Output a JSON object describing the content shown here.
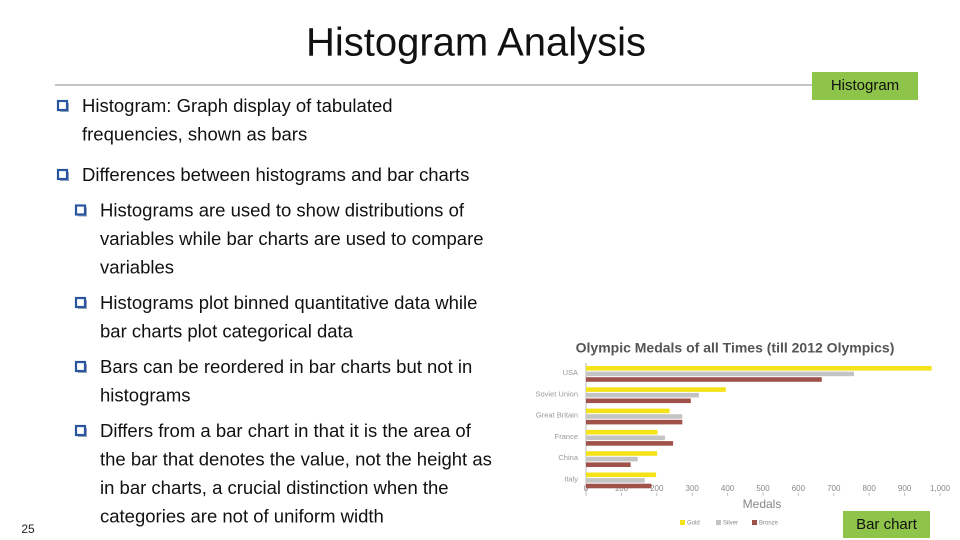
{
  "title": "Histogram Analysis",
  "tags": {
    "top": "Histogram",
    "bottom": "Bar chart"
  },
  "page_number": "25",
  "bullets": [
    {
      "lines": [
        "Histogram: Graph display of tabulated",
        "frequencies, shown as bars"
      ]
    },
    {
      "lines": [
        "Differences between histograms and bar charts"
      ],
      "sub": [
        {
          "lines": [
            "Histograms are used to show distributions of",
            "variables while bar charts are used to compare",
            "variables"
          ]
        },
        {
          "lines": [
            "Histograms plot binned quantitative data while",
            "bar charts plot categorical data"
          ]
        },
        {
          "lines": [
            "Bars can be reordered in bar charts but not in",
            "histograms"
          ]
        },
        {
          "lines": [
            "Differs from a bar chart in that it is the area of",
            "the bar that denotes the value, not the height as",
            "in bar charts, a crucial distinction when the",
            "categories are not of uniform width"
          ]
        }
      ]
    }
  ],
  "chart_data": {
    "type": "bar",
    "orientation": "horizontal",
    "title": "Olympic Medals of all Times (till 2012 Olympics)",
    "xlabel": "Medals",
    "categories": [
      "USA",
      "Soviet Union",
      "Great Britain",
      "France",
      "China",
      "Italy"
    ],
    "series": [
      {
        "name": "Gold",
        "color": "#f5e31a",
        "values": [
          976,
          395,
          236,
          202,
          201,
          198
        ]
      },
      {
        "name": "Silver",
        "color": "#c4c4c4",
        "values": [
          757,
          319,
          272,
          223,
          146,
          166
        ]
      },
      {
        "name": "Bronze",
        "color": "#a0524a",
        "values": [
          666,
          296,
          272,
          246,
          126,
          185
        ]
      }
    ],
    "xlim": [
      0,
      1000
    ],
    "xticks": [
      0,
      100,
      200,
      300,
      400,
      500,
      600,
      700,
      800,
      900,
      {
        "value": 1000,
        "label": "1,000"
      }
    ],
    "grid": false
  }
}
